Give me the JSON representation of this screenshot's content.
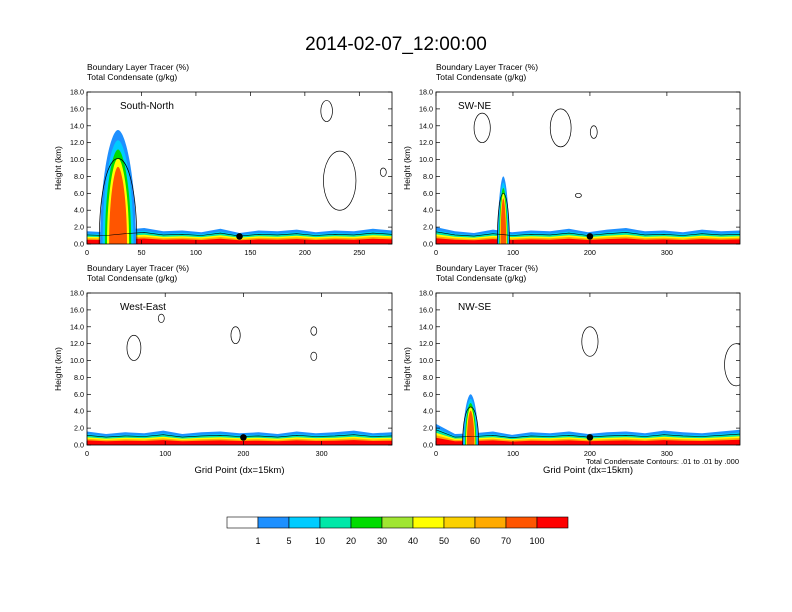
{
  "title": "2014-02-07_12:00:00",
  "colors": {
    "scale": [
      "#ffffff",
      "#1e90ff",
      "#00ccff",
      "#00e8a8",
      "#00dc00",
      "#a0e632",
      "#ffff00",
      "#fbd100",
      "#ffaa00",
      "#ff5500",
      "#ff0000"
    ],
    "contour": "#000000",
    "marker": "#000000"
  },
  "colorbar": {
    "labels": [
      "1",
      "5",
      "10",
      "20",
      "30",
      "40",
      "50",
      "60",
      "70",
      "100"
    ]
  },
  "footnote": "Total Condensate Contours: .01 to .01 by .000",
  "chart_data": [
    {
      "type": "contour",
      "label": "South-North",
      "header": [
        "Boundary Layer Tracer   (%)",
        "Total Condensate   (g/kg)"
      ],
      "ylabel": "Height (km)",
      "xlabel": "",
      "xlim": [
        0,
        280
      ],
      "ylim": [
        0,
        18
      ],
      "xticks": [
        0,
        50,
        100,
        150,
        200,
        250
      ],
      "yticks": [
        0.0,
        2.0,
        4.0,
        6.0,
        8.0,
        10.0,
        12.0,
        14.0,
        16.0,
        18.0
      ],
      "marker_x": 140,
      "boundary_layer_top_km": [
        1.5,
        1.4,
        1.7,
        1.9,
        1.5,
        1.6,
        1.4,
        1.8,
        1.3,
        1.6,
        1.5,
        1.7,
        1.4,
        1.6,
        1.5,
        1.8,
        1.6
      ],
      "convection": {
        "x": [
          12,
          45
        ],
        "top_km": 13.5
      },
      "clouds_km": [
        [
          232,
          4,
          11
        ],
        [
          220,
          14.5,
          17
        ],
        [
          272,
          8,
          9
        ]
      ]
    },
    {
      "type": "contour",
      "label": "SW-NE",
      "header": [
        "Boundary Layer Tracer   (%)",
        "Total Condensate   (g/kg)"
      ],
      "ylabel": "Height (km)",
      "xlabel": "",
      "xlim": [
        0,
        395
      ],
      "ylim": [
        0,
        18
      ],
      "xticks": [
        0,
        100,
        200,
        300
      ],
      "yticks": [
        0.0,
        2.0,
        4.0,
        6.0,
        8.0,
        10.0,
        12.0,
        14.0,
        16.0,
        18.0
      ],
      "marker_x": 200,
      "boundary_layer_top_km": [
        2.0,
        1.5,
        1.3,
        1.7,
        1.4,
        1.6,
        1.5,
        1.8,
        1.4,
        1.7,
        1.9,
        1.5,
        1.6,
        1.4,
        1.7,
        1.5,
        1.6
      ],
      "convection": {
        "x": [
          80,
          95
        ],
        "top_km": 8.0
      },
      "clouds_km": [
        [
          60,
          12,
          15.5
        ],
        [
          162,
          11.5,
          16
        ],
        [
          205,
          12.5,
          14
        ],
        [
          185,
          5.5,
          6
        ]
      ]
    },
    {
      "type": "contour",
      "label": "West-East",
      "header": [
        "Boundary Layer Tracer   (%)",
        "Total Condensate   (g/kg)"
      ],
      "ylabel": "Height (km)",
      "xlabel": "Grid Point (dx=15km)",
      "xlim": [
        0,
        390
      ],
      "ylim": [
        0,
        18
      ],
      "xticks": [
        0,
        100,
        200,
        300
      ],
      "yticks": [
        0.0,
        2.0,
        4.0,
        6.0,
        8.0,
        10.0,
        12.0,
        14.0,
        16.0,
        18.0
      ],
      "marker_x": 200,
      "boundary_layer_top_km": [
        1.6,
        1.3,
        1.5,
        1.4,
        1.7,
        1.3,
        1.5,
        1.6,
        1.4,
        1.5,
        1.3,
        1.6,
        1.4,
        1.5,
        1.7,
        1.4,
        1.5
      ],
      "convection": null,
      "clouds_km": [
        [
          60,
          10,
          13
        ],
        [
          95,
          14.5,
          15.5
        ],
        [
          190,
          12,
          14
        ],
        [
          290,
          13,
          14
        ],
        [
          290,
          10,
          11
        ]
      ]
    },
    {
      "type": "contour",
      "label": "NW-SE",
      "header": [
        "Boundary Layer Tracer   (%)",
        "Total Condensate   (g/kg)"
      ],
      "ylabel": "Height (km)",
      "xlabel": "Grid Point (dx=15km)",
      "xlim": [
        0,
        395
      ],
      "ylim": [
        0,
        18
      ],
      "xticks": [
        0,
        100,
        200,
        300
      ],
      "yticks": [
        0.0,
        2.0,
        4.0,
        6.0,
        8.0,
        10.0,
        12.0,
        14.0,
        16.0,
        18.0
      ],
      "marker_x": 200,
      "boundary_layer_top_km": [
        2.5,
        1.3,
        1.4,
        1.6,
        1.2,
        1.5,
        1.4,
        1.6,
        1.3,
        1.5,
        1.6,
        1.4,
        1.7,
        1.5,
        1.4,
        1.6,
        1.8
      ],
      "convection": {
        "x": [
          35,
          55
        ],
        "top_km": 6.0
      },
      "clouds_km": [
        [
          200,
          10.5,
          14
        ],
        [
          390,
          7,
          12
        ]
      ]
    }
  ]
}
